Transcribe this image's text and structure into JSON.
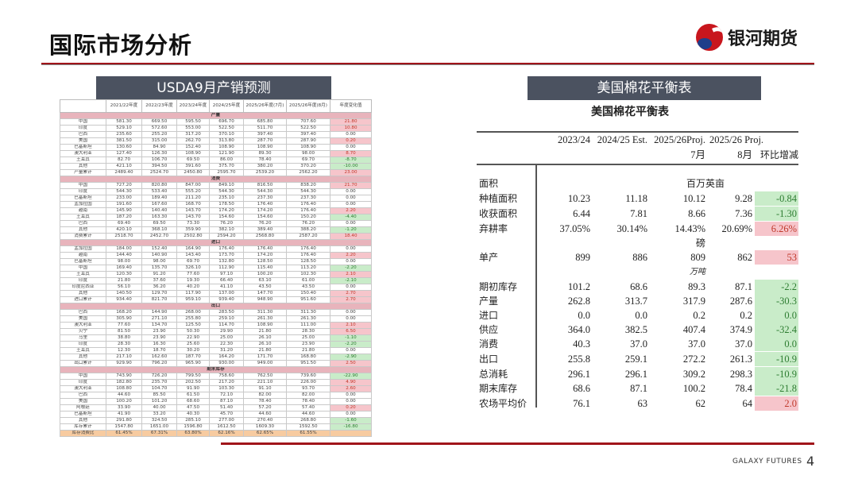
{
  "header": {
    "title": "国际市场分析",
    "logo_text": "银河期货"
  },
  "left": {
    "banner": "USDA9月产销预测",
    "columns": [
      "",
      "2021/22年度",
      "2022/23年度",
      "2023/24年度",
      "2024/25年度",
      "2025/26年度(7月)",
      "2025/26年度(8月)",
      "年度变化值"
    ],
    "sections": [
      {
        "name": "产量",
        "rows": [
          [
            "中国",
            "581.30",
            "669.50",
            "595.50",
            "696.70",
            "685.80",
            "707.60",
            "21.80"
          ],
          [
            "印度",
            "529.10",
            "572.60",
            "553.00",
            "522.50",
            "511.70",
            "522.50",
            "10.80"
          ],
          [
            "巴西",
            "235.60",
            "255.20",
            "317.20",
            "370.10",
            "397.40",
            "397.40",
            "0.00"
          ],
          [
            "美国",
            "381.50",
            "315.00",
            "262.70",
            "313.80",
            "287.70",
            "287.90",
            "0.20"
          ],
          [
            "巴基斯坦",
            "130.60",
            "84.90",
            "152.40",
            "108.90",
            "108.90",
            "108.90",
            "0.00"
          ],
          [
            "澳大利亚",
            "127.40",
            "126.30",
            "108.90",
            "121.90",
            "89.30",
            "98.00",
            "8.70"
          ],
          [
            "土耳其",
            "82.70",
            "106.70",
            "69.50",
            "86.00",
            "78.40",
            "69.70",
            "-8.70"
          ],
          [
            "其他",
            "421.10",
            "394.50",
            "391.60",
            "375.70",
            "380.20",
            "370.20",
            "-10.00"
          ],
          [
            "产量累计",
            "2489.40",
            "2524.70",
            "2450.80",
            "2595.70",
            "2539.20",
            "2562.20",
            "23.00"
          ]
        ]
      },
      {
        "name": "消费",
        "rows": [
          [
            "中国",
            "727.20",
            "820.80",
            "847.00",
            "849.10",
            "816.50",
            "838.20",
            "21.70"
          ],
          [
            "印度",
            "544.30",
            "533.40",
            "555.20",
            "544.30",
            "544.30",
            "544.30",
            "0.00"
          ],
          [
            "巴基斯坦",
            "233.00",
            "189.40",
            "211.20",
            "235.10",
            "237.30",
            "237.30",
            "0.00"
          ],
          [
            "孟加拉国",
            "191.60",
            "167.60",
            "168.70",
            "178.50",
            "176.40",
            "176.40",
            "0.00"
          ],
          [
            "越南",
            "145.90",
            "140.40",
            "143.70",
            "174.20",
            "174.20",
            "176.40",
            "2.20"
          ],
          [
            "土耳其",
            "187.20",
            "163.30",
            "143.70",
            "154.60",
            "154.60",
            "150.20",
            "-4.40"
          ],
          [
            "巴西",
            "69.40",
            "69.50",
            "73.30",
            "76.20",
            "76.20",
            "76.20",
            "0.00"
          ],
          [
            "其他",
            "420.10",
            "368.10",
            "359.90",
            "382.10",
            "389.40",
            "388.20",
            "-1.20"
          ],
          [
            "消费累计",
            "2518.70",
            "2452.70",
            "2502.80",
            "2594.20",
            "2568.80",
            "2587.20",
            "18.40"
          ]
        ]
      },
      {
        "name": "进口",
        "rows": [
          [
            "孟加拉国",
            "184.00",
            "152.40",
            "164.90",
            "176.40",
            "176.40",
            "176.40",
            "0.00"
          ],
          [
            "越南",
            "144.40",
            "140.90",
            "143.40",
            "173.70",
            "174.20",
            "176.40",
            "2.20"
          ],
          [
            "巴基斯坦",
            "98.00",
            "98.00",
            "69.70",
            "132.80",
            "128.50",
            "128.50",
            "0.00"
          ],
          [
            "中国",
            "169.40",
            "135.70",
            "326.10",
            "112.90",
            "115.40",
            "113.20",
            "-2.20"
          ],
          [
            "土耳其",
            "120.30",
            "91.20",
            "77.60",
            "97.10",
            "100.20",
            "102.30",
            "2.10"
          ],
          [
            "印度",
            "21.80",
            "37.60",
            "19.30",
            "66.40",
            "63.10",
            "61.00",
            "-2.10"
          ],
          [
            "印度尼西亚",
            "56.10",
            "36.20",
            "40.20",
            "41.10",
            "43.50",
            "43.50",
            "0.00"
          ],
          [
            "其他",
            "140.50",
            "129.70",
            "117.90",
            "137.00",
            "147.70",
            "150.40",
            "2.70"
          ],
          [
            "进口累计",
            "934.40",
            "821.70",
            "959.10",
            "939.40",
            "948.90",
            "951.60",
            "2.70"
          ]
        ]
      },
      {
        "name": "出口",
        "rows": [
          [
            "巴西",
            "168.20",
            "144.90",
            "268.00",
            "283.50",
            "311.30",
            "311.30",
            "0.00"
          ],
          [
            "美国",
            "305.90",
            "271.10",
            "255.80",
            "259.10",
            "261.30",
            "261.30",
            "0.00"
          ],
          [
            "澳大利亚",
            "77.60",
            "134.70",
            "125.50",
            "114.70",
            "108.90",
            "111.00",
            "2.10"
          ],
          [
            "贝宁",
            "81.50",
            "23.90",
            "50.30",
            "29.90",
            "21.80",
            "28.30",
            "6.50"
          ],
          [
            "马里",
            "38.80",
            "23.90",
            "22.90",
            "25.00",
            "26.10",
            "25.00",
            "-1.10"
          ],
          [
            "印度",
            "28.30",
            "16.30",
            "25.60",
            "22.30",
            "26.10",
            "23.90",
            "-2.20"
          ],
          [
            "土耳其",
            "12.30",
            "18.70",
            "30.20",
            "31.20",
            "21.80",
            "21.80",
            "0.00"
          ],
          [
            "其他",
            "217.10",
            "162.60",
            "187.70",
            "164.20",
            "171.70",
            "168.80",
            "-2.90"
          ],
          [
            "出口累计",
            "929.90",
            "796.20",
            "965.90",
            "930.00",
            "949.00",
            "951.50",
            "2.50"
          ]
        ]
      },
      {
        "name": "期末库存",
        "rows": [
          [
            "中国",
            "743.90",
            "726.20",
            "799.50",
            "758.60",
            "762.50",
            "739.60",
            "-22.90"
          ],
          [
            "印度",
            "182.80",
            "235.70",
            "202.50",
            "217.20",
            "221.10",
            "226.00",
            "4.90"
          ],
          [
            "澳大利亚",
            "108.80",
            "104.70",
            "91.90",
            "103.30",
            "91.10",
            "93.70",
            "2.60"
          ],
          [
            "巴西",
            "44.60",
            "85.50",
            "61.50",
            "72.10",
            "82.00",
            "82.00",
            "0.00"
          ],
          [
            "美国",
            "100.20",
            "101.20",
            "68.60",
            "87.10",
            "78.40",
            "78.40",
            "0.00"
          ],
          [
            "阿根廷",
            "33.90",
            "40.00",
            "47.50",
            "51.40",
            "57.20",
            "57.40",
            "0.20"
          ],
          [
            "巴基斯坦",
            "41.90",
            "33.20",
            "40.30",
            "45.70",
            "44.60",
            "44.60",
            "0.00"
          ],
          [
            "其他",
            "291.80",
            "324.50",
            "285.10",
            "277.00",
            "270.40",
            "268.80",
            "-1.60"
          ],
          [
            "库存累计",
            "1547.80",
            "1651.00",
            "1596.80",
            "1612.50",
            "1609.30",
            "1592.50",
            "-16.80"
          ]
        ]
      }
    ],
    "ratio": [
      "库存消费比",
      "61.45%",
      "67.31%",
      "63.80%",
      "62.16%",
      "62.65%",
      "61.55%",
      ""
    ]
  },
  "right": {
    "banner": "美国棉花平衡表",
    "subtitle": "美国棉花平衡表",
    "headers": [
      "2023/24",
      "2024/25 Est.",
      "2025/26Proj.",
      "2025/26 Proj."
    ],
    "subheaders": [
      "7月",
      "8月",
      "环比增减"
    ],
    "units": {
      "area": "百万英亩",
      "yield": "磅",
      "volume": "万吨"
    },
    "rows": [
      {
        "label": "面积",
        "values": [
          "",
          "",
          "",
          "",
          ""
        ]
      },
      {
        "label": "种植面积",
        "values": [
          "10.23",
          "11.18",
          "10.12",
          "9.28",
          "-0.84"
        ],
        "change": "neg"
      },
      {
        "label": "收获面积",
        "values": [
          "6.44",
          "7.81",
          "8.66",
          "7.36",
          "-1.30"
        ],
        "change": "neg"
      },
      {
        "label": "弃耕率",
        "values": [
          "37.05%",
          "30.14%",
          "14.43%",
          "20.69%",
          "6.26%"
        ],
        "change": "pos"
      },
      {
        "label": "单产",
        "values": [
          "899",
          "886",
          "809",
          "862",
          "53"
        ],
        "change": "pos"
      },
      {
        "label": "期初库存",
        "values": [
          "101.2",
          "68.6",
          "89.3",
          "87.1",
          "-2.2"
        ],
        "change": "neg"
      },
      {
        "label": "产量",
        "values": [
          "262.8",
          "313.7",
          "317.9",
          "287.6",
          "-30.3"
        ],
        "change": "neg"
      },
      {
        "label": "进口",
        "values": [
          "0.0",
          "0.0",
          "0.2",
          "0.2",
          "0.0"
        ],
        "change": "neg"
      },
      {
        "label": "供应",
        "values": [
          "364.0",
          "382.5",
          "407.4",
          "374.9",
          "-32.4"
        ],
        "change": "neg"
      },
      {
        "label": "消费",
        "values": [
          "40.3",
          "37.0",
          "37.0",
          "37.0",
          "0.0"
        ],
        "change": "neg"
      },
      {
        "label": "出口",
        "values": [
          "255.8",
          "259.1",
          "272.2",
          "261.3",
          "-10.9"
        ],
        "change": "neg"
      },
      {
        "label": "总消耗",
        "values": [
          "296.1",
          "296.1",
          "309.2",
          "298.3",
          "-10.9"
        ],
        "change": "neg"
      },
      {
        "label": "期末库存",
        "values": [
          "68.6",
          "87.1",
          "100.2",
          "78.4",
          "-21.8"
        ],
        "change": "neg"
      },
      {
        "label": "农场平均价",
        "values": [
          "76.1",
          "63",
          "62",
          "64",
          "2.0"
        ],
        "change": "pos"
      }
    ]
  },
  "footer": {
    "brand": "GALAXY FUTURES",
    "page": "4"
  },
  "colors": {
    "accent": "#a0141a",
    "banner": "#4b5260",
    "positive_bg": "#f6c5cb",
    "negative_bg": "#c9ecc9"
  }
}
